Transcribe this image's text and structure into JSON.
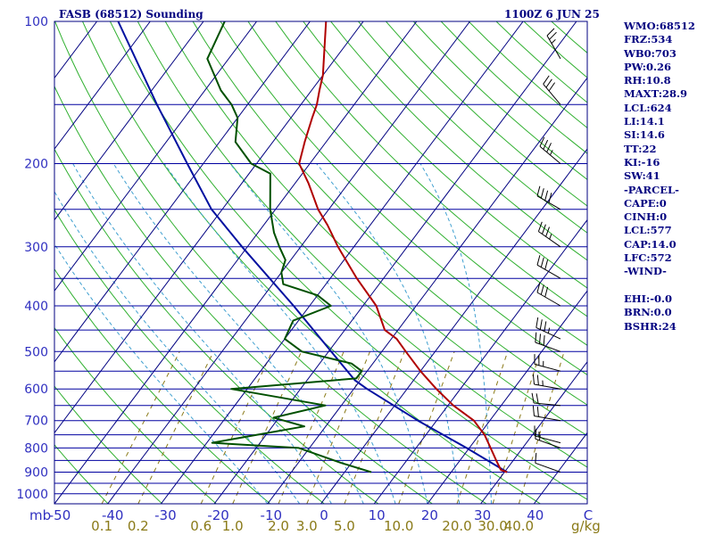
{
  "header": {
    "station": "FASB (68512) Sounding",
    "time": "1100Z  6 JUN 25"
  },
  "indices": [
    "WMO:68512",
    "FRZ:534",
    "WB0:703",
    "PW:0.26",
    "RH:10.8",
    "MAXT:28.9",
    "LCL:624",
    "LI:14.1",
    "SI:14.6",
    "TT:22",
    "KI:-16",
    "SW:41",
    "-PARCEL-",
    "CAPE:0",
    "CINH:0",
    "LCL:577",
    "CAP:14.0",
    "LFC:572",
    "-WIND-",
    "",
    "EHI:-0.0",
    "BRN:0.0",
    "BSHR:24"
  ],
  "colors": {
    "frame": "#000080",
    "isobar": "#0000a0",
    "isotherm": "#000080",
    "dry_adiabat": "#30b030",
    "moist_adiabat": "#40a0d0",
    "mixing_ratio": "#8a7a18",
    "temperature": "#b00000",
    "dewpoint": "#005000",
    "parcel": "#0010a0",
    "wind_barb": "#000000"
  },
  "chart_data": {
    "type": "skew-t",
    "title": "FASB (68512) Sounding",
    "pressure_unit_label": "mb",
    "mixing_ratio_unit_label": "g/kg",
    "pressure_ticks": [
      100,
      200,
      300,
      400,
      500,
      600,
      700,
      800,
      900,
      1000
    ],
    "temperature_ticks": [
      "-50",
      "-40",
      "-30",
      "-20",
      "-10",
      "0",
      "10",
      "20",
      "30",
      "40",
      "C"
    ],
    "mixing_ratio_ticks": [
      "0.1",
      "0.2",
      "0.6",
      "1.0",
      "2.0",
      "3.0",
      "5.0",
      "10.0",
      "20.0",
      "30.0",
      "40.0"
    ],
    "pressure_range": [
      1050,
      100
    ],
    "temperature_range": [
      -50,
      50
    ],
    "temperature_profile": [
      {
        "p": 900,
        "t": 30.5
      },
      {
        "p": 890,
        "t": 29.0
      },
      {
        "p": 850,
        "t": 26.8
      },
      {
        "p": 800,
        "t": 24.0
      },
      {
        "p": 750,
        "t": 21.0
      },
      {
        "p": 700,
        "t": 17.0
      },
      {
        "p": 650,
        "t": 11.0
      },
      {
        "p": 600,
        "t": 5.5
      },
      {
        "p": 550,
        "t": 0.0
      },
      {
        "p": 500,
        "t": -5.5
      },
      {
        "p": 470,
        "t": -9.0
      },
      {
        "p": 450,
        "t": -12.5
      },
      {
        "p": 400,
        "t": -17.5
      },
      {
        "p": 350,
        "t": -25.0
      },
      {
        "p": 300,
        "t": -33.0
      },
      {
        "p": 270,
        "t": -38.0
      },
      {
        "p": 250,
        "t": -42.0
      },
      {
        "p": 220,
        "t": -47.5
      },
      {
        "p": 200,
        "t": -52.0
      },
      {
        "p": 180,
        "t": -54.0
      },
      {
        "p": 160,
        "t": -56.0
      },
      {
        "p": 150,
        "t": -57.0
      },
      {
        "p": 140,
        "t": -58.5
      },
      {
        "p": 130,
        "t": -60.0
      },
      {
        "p": 100,
        "t": -67.0
      }
    ],
    "dewpoint_profile": [
      {
        "p": 900,
        "t": 5.0
      },
      {
        "p": 860,
        "t": -2.0
      },
      {
        "p": 800,
        "t": -12.0
      },
      {
        "p": 780,
        "t": -29.0
      },
      {
        "p": 720,
        "t": -14.0
      },
      {
        "p": 690,
        "t": -21.0
      },
      {
        "p": 650,
        "t": -13.0
      },
      {
        "p": 600,
        "t": -33.0
      },
      {
        "p": 570,
        "t": -11.0
      },
      {
        "p": 550,
        "t": -11.0
      },
      {
        "p": 530,
        "t": -14.0
      },
      {
        "p": 500,
        "t": -25.0
      },
      {
        "p": 470,
        "t": -30.0
      },
      {
        "p": 430,
        "t": -31.0
      },
      {
        "p": 400,
        "t": -26.0
      },
      {
        "p": 380,
        "t": -30.0
      },
      {
        "p": 360,
        "t": -38.0
      },
      {
        "p": 340,
        "t": -40.0
      },
      {
        "p": 320,
        "t": -41.0
      },
      {
        "p": 300,
        "t": -44.0
      },
      {
        "p": 280,
        "t": -47.0
      },
      {
        "p": 250,
        "t": -51.0
      },
      {
        "p": 210,
        "t": -56.0
      },
      {
        "p": 200,
        "t": -61.0
      },
      {
        "p": 180,
        "t": -67.0
      },
      {
        "p": 160,
        "t": -70.0
      },
      {
        "p": 150,
        "t": -73.0
      },
      {
        "p": 140,
        "t": -77.0
      },
      {
        "p": 120,
        "t": -84.0
      },
      {
        "p": 100,
        "t": -86.0
      }
    ],
    "parcel_profile": [
      {
        "p": 900,
        "t": 30.5
      },
      {
        "p": 800,
        "t": 19.5
      },
      {
        "p": 700,
        "t": 6.5
      },
      {
        "p": 600,
        "t": -7.5
      },
      {
        "p": 575,
        "t": -11.0
      },
      {
        "p": 500,
        "t": -19.5
      },
      {
        "p": 400,
        "t": -33.0
      },
      {
        "p": 300,
        "t": -51.0
      },
      {
        "p": 250,
        "t": -62.0
      },
      {
        "p": 200,
        "t": -73.0
      },
      {
        "p": 150,
        "t": -87.0
      },
      {
        "p": 100,
        "t": -106.0
      }
    ],
    "winds": [
      {
        "p": 900,
        "dir": 290,
        "spd": 10
      },
      {
        "p": 800,
        "dir": 290,
        "spd": 15
      },
      {
        "p": 780,
        "dir": 285,
        "spd": 15
      },
      {
        "p": 700,
        "dir": 280,
        "spd": 20
      },
      {
        "p": 650,
        "dir": 275,
        "spd": 20
      },
      {
        "p": 600,
        "dir": 280,
        "spd": 25
      },
      {
        "p": 550,
        "dir": 285,
        "spd": 25
      },
      {
        "p": 500,
        "dir": 290,
        "spd": 30
      },
      {
        "p": 470,
        "dir": 295,
        "spd": 35
      },
      {
        "p": 400,
        "dir": 300,
        "spd": 30
      },
      {
        "p": 350,
        "dir": 300,
        "spd": 30
      },
      {
        "p": 300,
        "dir": 305,
        "spd": 35
      },
      {
        "p": 250,
        "dir": 300,
        "spd": 40
      },
      {
        "p": 200,
        "dir": 310,
        "spd": 35
      },
      {
        "p": 150,
        "dir": 320,
        "spd": 30
      },
      {
        "p": 120,
        "dir": 330,
        "spd": 25
      }
    ]
  }
}
